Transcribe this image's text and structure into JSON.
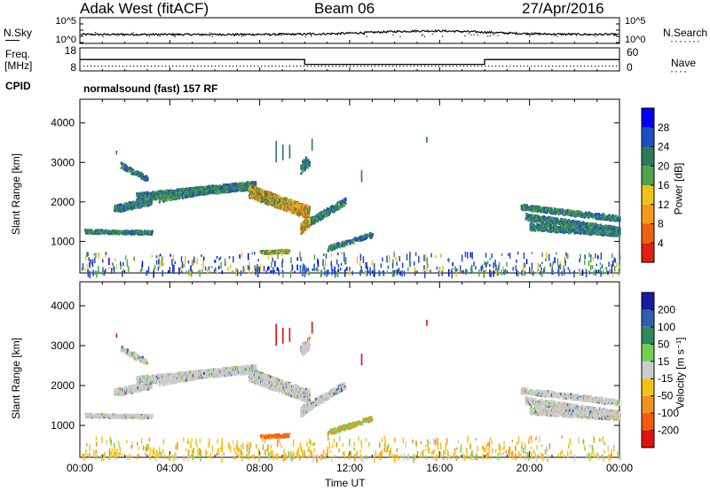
{
  "header": {
    "station": "Adak West (fitACF)",
    "beam": "Beam 06",
    "date": "27/Apr/2016"
  },
  "noise_panel": {
    "left_label": "N.Sky",
    "right_label": "N.Search",
    "y_ticks_left": [
      "10^5",
      "10^0"
    ],
    "y_ticks_right": [
      "10^5",
      "10^0"
    ]
  },
  "freq_panel": {
    "left_label_line1": "Freq.",
    "left_label_line2": "[MHz]",
    "right_label": "Nave",
    "y_ticks_left": [
      "18",
      "8"
    ],
    "y_ticks_right": [
      "60",
      "0"
    ]
  },
  "cpid_panel": {
    "left_label": "CPID",
    "mode_text": "normalsound (fast) 157 RF"
  },
  "chart_data": [
    {
      "type": "heatmap",
      "name": "power",
      "ylabel": "Slant Range [km]",
      "y_ticks": [
        "4000",
        "3000",
        "2000",
        "1000"
      ],
      "colorbar_label": "Power [dB]",
      "colorbar_ticks": [
        "28",
        "24",
        "20",
        "16",
        "12",
        "8",
        "4"
      ],
      "colorbar_colors": [
        "#0000ee",
        "#1f4fbf",
        "#2f7a5a",
        "#4fa34f",
        "#f2c21a",
        "#f49a1a",
        "#f06010",
        "#e22010"
      ],
      "ylim": [
        200,
        4600
      ],
      "xlim_hours": [
        0,
        24
      ]
    },
    {
      "type": "heatmap",
      "name": "velocity",
      "ylabel": "Slant Range [km]",
      "y_ticks": [
        "4000",
        "3000",
        "2000",
        "1000"
      ],
      "colorbar_label": "Velocity [m s⁻¹]",
      "colorbar_ticks": [
        "200",
        "100",
        "50",
        "15",
        "-15",
        "-50",
        "-100",
        "-200"
      ],
      "colorbar_colors": [
        "#1a1aa0",
        "#2f5fb0",
        "#2f8a5a",
        "#6fd04f",
        "#cccccc",
        "#f2c21a",
        "#f29020",
        "#f25a10",
        "#e01010"
      ],
      "ylim": [
        200,
        4600
      ],
      "xlim_hours": [
        0,
        24
      ]
    }
  ],
  "x_axis": {
    "ticks": [
      "00:00",
      "04:00",
      "08:00",
      "12:00",
      "16:00",
      "20:00",
      "00:00"
    ],
    "label": "Time UT"
  },
  "freq_trace": {
    "segments_hours": [
      [
        0,
        10,
        14
      ],
      [
        10,
        18,
        11
      ],
      [
        18,
        24,
        14
      ]
    ]
  }
}
